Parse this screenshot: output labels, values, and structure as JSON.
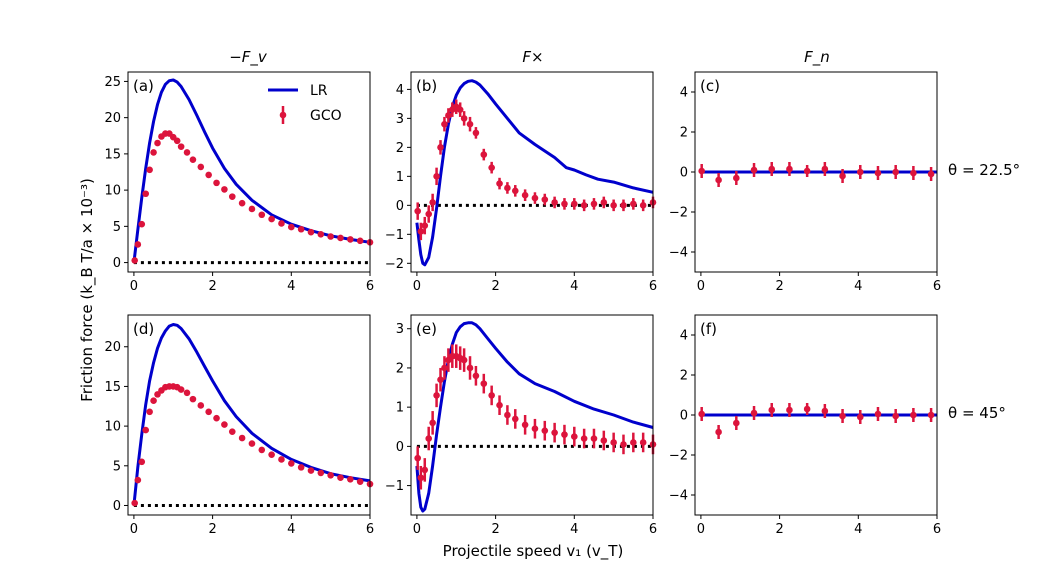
{
  "figure": {
    "ylabel": "Friction force (k_B T/a × 10⁻³)",
    "xlabel": "Projectile speed v₁ (v_T)",
    "col_titles": [
      "−F_v",
      "F×",
      "F_n"
    ],
    "row_labels": [
      "θ = 22.5°",
      "θ = 45°"
    ],
    "legend": [
      "LR",
      "GCO"
    ]
  },
  "colors": {
    "lr": "#0000cc",
    "gco": "#dc143c",
    "zero": "#000000"
  },
  "chart_data": [
    {
      "type": "line+errorbar",
      "panel": "(a)",
      "row": 0,
      "col": 0,
      "xlim": [
        -0.15,
        6
      ],
      "ylim": [
        -1.3,
        26.3
      ],
      "xticks": [
        0,
        2,
        4,
        6
      ],
      "yticks": [
        0,
        5,
        10,
        15,
        20,
        25
      ],
      "lr": {
        "x": [
          0,
          0.1,
          0.2,
          0.3,
          0.4,
          0.5,
          0.6,
          0.7,
          0.8,
          0.9,
          1.0,
          1.1,
          1.2,
          1.4,
          1.6,
          1.8,
          2.0,
          2.3,
          2.6,
          3.0,
          3.5,
          4.0,
          4.5,
          5.0,
          5.5,
          6.0
        ],
        "y": [
          0,
          4.5,
          9,
          13,
          16.5,
          19.5,
          21.8,
          23.5,
          24.6,
          25.1,
          25.2,
          24.9,
          24.3,
          22.5,
          20.3,
          18.0,
          15.8,
          13.0,
          10.8,
          8.6,
          6.6,
          5.3,
          4.4,
          3.7,
          3.2,
          2.8
        ]
      },
      "gco": {
        "x": [
          0.02,
          0.1,
          0.2,
          0.3,
          0.4,
          0.5,
          0.6,
          0.7,
          0.8,
          0.9,
          1.0,
          1.1,
          1.2,
          1.35,
          1.5,
          1.7,
          1.9,
          2.1,
          2.3,
          2.5,
          2.75,
          3.0,
          3.25,
          3.5,
          3.75,
          4.0,
          4.25,
          4.5,
          4.75,
          5.0,
          5.25,
          5.5,
          5.75,
          6.0
        ],
        "y": [
          0.3,
          2.5,
          5.3,
          9.5,
          12.8,
          15.2,
          16.5,
          17.4,
          17.8,
          17.8,
          17.3,
          16.8,
          16.0,
          15.2,
          14.2,
          13.2,
          12.1,
          11.0,
          10.1,
          9.1,
          8.2,
          7.4,
          6.6,
          6.0,
          5.4,
          4.9,
          4.6,
          4.2,
          3.9,
          3.6,
          3.4,
          3.2,
          3.0,
          2.8
        ],
        "err": [
          0.2,
          0.3,
          0.3,
          0.3,
          0.3,
          0.3,
          0.3,
          0.3,
          0.3,
          0.3,
          0.3,
          0.3,
          0.3,
          0.3,
          0.3,
          0.3,
          0.3,
          0.3,
          0.3,
          0.3,
          0.3,
          0.3,
          0.3,
          0.3,
          0.3,
          0.3,
          0.3,
          0.3,
          0.3,
          0.3,
          0.3,
          0.3,
          0.3,
          0.3
        ]
      },
      "legend": true
    },
    {
      "type": "line+errorbar",
      "panel": "(b)",
      "row": 0,
      "col": 1,
      "xlim": [
        -0.15,
        6
      ],
      "ylim": [
        -2.3,
        4.6
      ],
      "xticks": [
        0,
        2,
        4,
        6
      ],
      "yticks": [
        -2,
        -1,
        0,
        1,
        2,
        3,
        4
      ],
      "lr": {
        "x": [
          0,
          0.05,
          0.1,
          0.15,
          0.2,
          0.3,
          0.4,
          0.5,
          0.6,
          0.7,
          0.8,
          0.9,
          1.0,
          1.1,
          1.2,
          1.3,
          1.4,
          1.5,
          1.6,
          1.8,
          2.0,
          2.3,
          2.6,
          3.0,
          3.5,
          3.8,
          4.0,
          4.3,
          4.6,
          5.0,
          5.5,
          6.0
        ],
        "y": [
          -0.6,
          -1.2,
          -1.7,
          -2.0,
          -2.05,
          -1.8,
          -1.1,
          -0.1,
          1.0,
          2.0,
          2.8,
          3.4,
          3.8,
          4.05,
          4.2,
          4.28,
          4.3,
          4.25,
          4.15,
          3.85,
          3.5,
          3.0,
          2.5,
          2.1,
          1.65,
          1.3,
          1.22,
          1.05,
          0.9,
          0.8,
          0.6,
          0.45
        ]
      },
      "gco": {
        "x": [
          0.02,
          0.1,
          0.2,
          0.3,
          0.4,
          0.5,
          0.6,
          0.7,
          0.8,
          0.9,
          1.0,
          1.1,
          1.2,
          1.35,
          1.5,
          1.7,
          1.9,
          2.1,
          2.3,
          2.5,
          2.75,
          3.0,
          3.25,
          3.5,
          3.75,
          4.0,
          4.25,
          4.5,
          4.75,
          5.0,
          5.25,
          5.5,
          5.75,
          6.0
        ],
        "y": [
          -0.2,
          -0.9,
          -0.7,
          -0.3,
          0.1,
          1.0,
          2.0,
          2.8,
          3.1,
          3.3,
          3.4,
          3.3,
          3.0,
          2.8,
          2.5,
          1.75,
          1.3,
          0.75,
          0.6,
          0.5,
          0.35,
          0.25,
          0.2,
          0.1,
          0.05,
          0.05,
          0.0,
          0.05,
          0.1,
          0.0,
          0.0,
          0.05,
          0.0,
          0.1
        ],
        "err": [
          0.3,
          0.3,
          0.3,
          0.3,
          0.3,
          0.3,
          0.25,
          0.25,
          0.25,
          0.25,
          0.25,
          0.25,
          0.25,
          0.25,
          0.2,
          0.2,
          0.2,
          0.2,
          0.2,
          0.2,
          0.2,
          0.2,
          0.2,
          0.2,
          0.2,
          0.2,
          0.2,
          0.2,
          0.2,
          0.2,
          0.2,
          0.2,
          0.2,
          0.2
        ]
      },
      "legend": false
    },
    {
      "type": "line+errorbar",
      "panel": "(c)",
      "row": 0,
      "col": 2,
      "xlim": [
        -0.15,
        6
      ],
      "ylim": [
        -5,
        5
      ],
      "xticks": [
        0,
        2,
        4,
        6
      ],
      "yticks": [
        -4,
        -2,
        0,
        2,
        4
      ],
      "lr": {
        "x": [
          0,
          6
        ],
        "y": [
          0,
          0
        ]
      },
      "gco": {
        "x": [
          0.02,
          0.45,
          0.9,
          1.35,
          1.8,
          2.25,
          2.7,
          3.15,
          3.6,
          4.05,
          4.5,
          4.95,
          5.4,
          5.85
        ],
        "y": [
          0.05,
          -0.4,
          -0.3,
          0.1,
          0.15,
          0.15,
          0.05,
          0.15,
          -0.2,
          0.0,
          -0.05,
          0.0,
          -0.05,
          -0.1
        ],
        "err": [
          0.35,
          0.35,
          0.35,
          0.35,
          0.35,
          0.35,
          0.3,
          0.35,
          0.35,
          0.35,
          0.35,
          0.35,
          0.35,
          0.35
        ]
      },
      "legend": false
    },
    {
      "type": "line+errorbar",
      "panel": "(d)",
      "row": 1,
      "col": 0,
      "xlim": [
        -0.15,
        6
      ],
      "ylim": [
        -1.2,
        24.0
      ],
      "xticks": [
        0,
        2,
        4,
        6
      ],
      "yticks": [
        0,
        5,
        10,
        15,
        20
      ],
      "lr": {
        "x": [
          0,
          0.1,
          0.2,
          0.3,
          0.4,
          0.5,
          0.6,
          0.7,
          0.8,
          0.9,
          1.0,
          1.1,
          1.2,
          1.4,
          1.6,
          1.8,
          2.0,
          2.3,
          2.6,
          3.0,
          3.5,
          4.0,
          4.5,
          5.0,
          5.5,
          6.0
        ],
        "y": [
          0,
          4.8,
          9.0,
          12.7,
          15.7,
          18.0,
          19.8,
          21.1,
          22.0,
          22.6,
          22.8,
          22.7,
          22.3,
          21.0,
          19.3,
          17.5,
          15.7,
          13.2,
          11.2,
          9.1,
          7.2,
          5.8,
          4.8,
          4.0,
          3.5,
          3.1
        ]
      },
      "gco": {
        "x": [
          0.02,
          0.1,
          0.2,
          0.3,
          0.4,
          0.5,
          0.6,
          0.7,
          0.8,
          0.9,
          1.0,
          1.1,
          1.2,
          1.35,
          1.5,
          1.7,
          1.9,
          2.1,
          2.3,
          2.5,
          2.75,
          3.0,
          3.25,
          3.5,
          3.75,
          4.0,
          4.25,
          4.5,
          4.75,
          5.0,
          5.25,
          5.5,
          5.75,
          6.0
        ],
        "y": [
          0.3,
          3.2,
          5.5,
          9.5,
          11.8,
          13.2,
          14.0,
          14.5,
          14.9,
          15.0,
          15.0,
          14.9,
          14.6,
          14.2,
          13.4,
          12.6,
          11.8,
          11.0,
          10.2,
          9.3,
          8.5,
          7.8,
          7.0,
          6.4,
          5.8,
          5.3,
          4.8,
          4.4,
          4.1,
          3.8,
          3.5,
          3.3,
          3.0,
          2.7
        ],
        "err": [
          0.2,
          0.3,
          0.3,
          0.3,
          0.3,
          0.3,
          0.3,
          0.3,
          0.3,
          0.3,
          0.3,
          0.3,
          0.3,
          0.3,
          0.3,
          0.3,
          0.3,
          0.3,
          0.3,
          0.3,
          0.3,
          0.3,
          0.3,
          0.3,
          0.3,
          0.3,
          0.3,
          0.3,
          0.3,
          0.3,
          0.3,
          0.3,
          0.3,
          0.3
        ]
      },
      "legend": false
    },
    {
      "type": "line+errorbar",
      "panel": "(e)",
      "row": 1,
      "col": 1,
      "xlim": [
        -0.15,
        6
      ],
      "ylim": [
        -1.75,
        3.35
      ],
      "xticks": [
        0,
        2,
        4,
        6
      ],
      "yticks": [
        -1,
        0,
        1,
        2,
        3
      ],
      "lr": {
        "x": [
          0,
          0.05,
          0.1,
          0.15,
          0.2,
          0.3,
          0.4,
          0.5,
          0.6,
          0.7,
          0.8,
          0.9,
          1.0,
          1.1,
          1.2,
          1.3,
          1.4,
          1.5,
          1.6,
          1.8,
          2.0,
          2.3,
          2.6,
          3.0,
          3.5,
          4.0,
          4.5,
          5.0,
          5.5,
          6.0
        ],
        "y": [
          -0.5,
          -1.2,
          -1.55,
          -1.65,
          -1.6,
          -1.2,
          -0.5,
          0.3,
          1.0,
          1.65,
          2.2,
          2.6,
          2.9,
          3.05,
          3.13,
          3.15,
          3.15,
          3.1,
          3.0,
          2.75,
          2.5,
          2.15,
          1.85,
          1.6,
          1.4,
          1.15,
          0.95,
          0.8,
          0.62,
          0.48
        ]
      },
      "gco": {
        "x": [
          0.02,
          0.1,
          0.2,
          0.3,
          0.4,
          0.5,
          0.6,
          0.7,
          0.8,
          0.9,
          1.0,
          1.1,
          1.2,
          1.35,
          1.5,
          1.7,
          1.9,
          2.1,
          2.3,
          2.5,
          2.75,
          3.0,
          3.25,
          3.5,
          3.75,
          4.0,
          4.25,
          4.5,
          4.75,
          5.0,
          5.25,
          5.5,
          5.75,
          6.0
        ],
        "y": [
          -0.3,
          -0.8,
          -0.6,
          0.2,
          0.6,
          1.3,
          1.7,
          2.0,
          2.2,
          2.3,
          2.3,
          2.25,
          2.2,
          2.0,
          1.8,
          1.6,
          1.3,
          1.05,
          0.8,
          0.7,
          0.55,
          0.45,
          0.4,
          0.35,
          0.3,
          0.25,
          0.2,
          0.2,
          0.15,
          0.1,
          0.05,
          0.1,
          0.1,
          0.05
        ],
        "err": [
          0.3,
          0.3,
          0.3,
          0.3,
          0.3,
          0.3,
          0.3,
          0.3,
          0.3,
          0.3,
          0.3,
          0.3,
          0.3,
          0.3,
          0.25,
          0.25,
          0.25,
          0.25,
          0.25,
          0.25,
          0.25,
          0.25,
          0.25,
          0.25,
          0.25,
          0.25,
          0.25,
          0.25,
          0.25,
          0.25,
          0.25,
          0.25,
          0.25,
          0.25
        ]
      },
      "legend": false
    },
    {
      "type": "line+errorbar",
      "panel": "(f)",
      "row": 1,
      "col": 2,
      "xlim": [
        -0.15,
        6
      ],
      "ylim": [
        -5,
        5
      ],
      "xticks": [
        0,
        2,
        4,
        6
      ],
      "yticks": [
        -4,
        -2,
        0,
        2,
        4
      ],
      "lr": {
        "x": [
          0,
          6
        ],
        "y": [
          0,
          0
        ]
      },
      "gco": {
        "x": [
          0.02,
          0.45,
          0.9,
          1.35,
          1.8,
          2.25,
          2.7,
          3.15,
          3.6,
          4.05,
          4.5,
          4.95,
          5.4,
          5.85
        ],
        "y": [
          0.05,
          -0.85,
          -0.4,
          0.1,
          0.25,
          0.25,
          0.3,
          0.2,
          -0.05,
          -0.1,
          0.05,
          -0.05,
          0.0,
          0.0
        ],
        "err": [
          0.35,
          0.35,
          0.35,
          0.35,
          0.35,
          0.35,
          0.3,
          0.35,
          0.35,
          0.35,
          0.35,
          0.35,
          0.35,
          0.35
        ]
      },
      "legend": false
    }
  ]
}
